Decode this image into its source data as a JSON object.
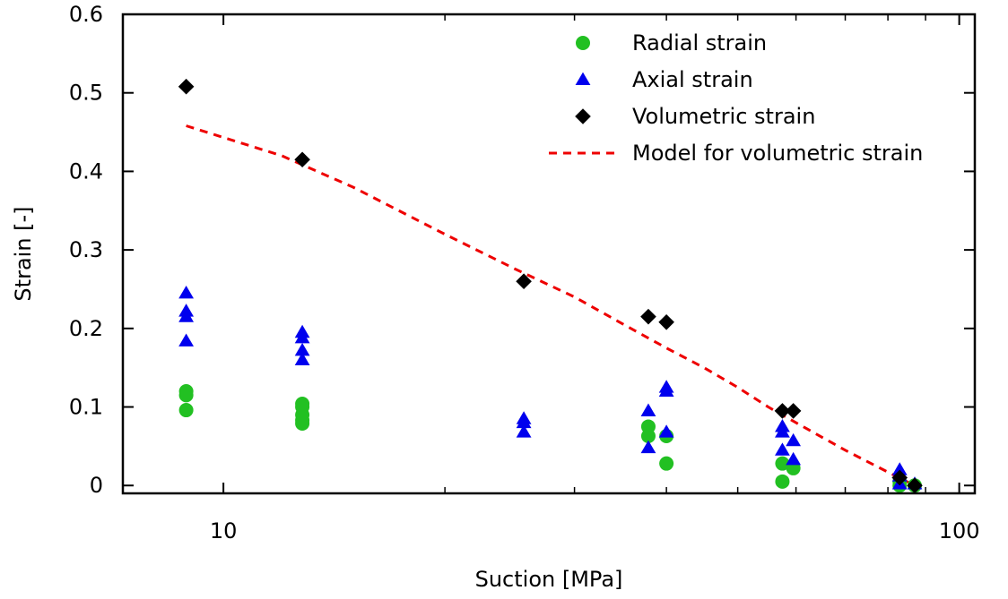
{
  "chart_data": {
    "type": "scatter",
    "xlabel": "Suction [MPa]",
    "ylabel": "Strain [-]",
    "xscale": "log",
    "xlim": [
      7.3,
      105
    ],
    "ylim": [
      -0.01,
      0.6
    ],
    "x_ticks_labeled": [
      {
        "value": 10,
        "label": "10"
      },
      {
        "value": 100,
        "label": "100"
      }
    ],
    "x_minor_ticks": [
      20,
      30,
      40,
      50,
      60,
      70,
      80,
      90
    ],
    "y_ticks": [
      {
        "value": 0,
        "label": "0"
      },
      {
        "value": 0.1,
        "label": "0.1"
      },
      {
        "value": 0.2,
        "label": "0.2"
      },
      {
        "value": 0.3,
        "label": "0.3"
      },
      {
        "value": 0.4,
        "label": "0.4"
      },
      {
        "value": 0.5,
        "label": "0.5"
      },
      {
        "value": 0.6,
        "label": "0.6"
      }
    ],
    "grid": false,
    "legend_position": "top-right",
    "series": [
      {
        "name": "Radial strain",
        "marker": "circle",
        "color": "#22c022",
        "points": [
          [
            8.9,
            0.12
          ],
          [
            8.9,
            0.115
          ],
          [
            8.9,
            0.096
          ],
          [
            12.8,
            0.104
          ],
          [
            12.8,
            0.1
          ],
          [
            12.8,
            0.09
          ],
          [
            12.8,
            0.083
          ],
          [
            12.8,
            0.079
          ],
          [
            37.8,
            0.075
          ],
          [
            37.8,
            0.063
          ],
          [
            40.0,
            0.063
          ],
          [
            40.0,
            0.028
          ],
          [
            57.5,
            0.028
          ],
          [
            57.5,
            0.005
          ],
          [
            59.5,
            0.022
          ],
          [
            83.0,
            0.0
          ],
          [
            83.0,
            0.005
          ],
          [
            87.0,
            0.0
          ]
        ]
      },
      {
        "name": "Axial strain",
        "marker": "triangle",
        "color": "#0000ee",
        "points": [
          [
            8.9,
            0.245
          ],
          [
            8.9,
            0.222
          ],
          [
            8.9,
            0.215
          ],
          [
            8.9,
            0.184
          ],
          [
            12.8,
            0.195
          ],
          [
            12.8,
            0.188
          ],
          [
            12.8,
            0.172
          ],
          [
            12.8,
            0.16
          ],
          [
            25.6,
            0.085
          ],
          [
            25.6,
            0.08
          ],
          [
            25.6,
            0.068
          ],
          [
            37.8,
            0.095
          ],
          [
            37.8,
            0.048
          ],
          [
            40.0,
            0.125
          ],
          [
            40.0,
            0.12
          ],
          [
            40.0,
            0.068
          ],
          [
            57.5,
            0.075
          ],
          [
            57.5,
            0.068
          ],
          [
            57.5,
            0.045
          ],
          [
            59.5,
            0.057
          ],
          [
            59.5,
            0.033
          ],
          [
            83.0,
            0.02
          ],
          [
            83.0,
            0.012
          ],
          [
            83.0,
            0.002
          ],
          [
            87.0,
            0.002
          ]
        ]
      },
      {
        "name": "Volumetric strain",
        "marker": "diamond",
        "color": "#000000",
        "points": [
          [
            8.9,
            0.508
          ],
          [
            12.8,
            0.415
          ],
          [
            25.6,
            0.26
          ],
          [
            37.8,
            0.215
          ],
          [
            40.0,
            0.208
          ],
          [
            57.5,
            0.095
          ],
          [
            59.5,
            0.095
          ],
          [
            83.0,
            0.01
          ],
          [
            87.0,
            0.0
          ]
        ]
      },
      {
        "name": "Model for volumetric strain",
        "marker": "dashed-line",
        "color": "#ee0000",
        "points": [
          [
            8.9,
            0.458
          ],
          [
            12.0,
            0.42
          ],
          [
            15.0,
            0.38
          ],
          [
            20.0,
            0.32
          ],
          [
            25.0,
            0.275
          ],
          [
            30.0,
            0.24
          ],
          [
            35.0,
            0.205
          ],
          [
            40.0,
            0.175
          ],
          [
            45.0,
            0.15
          ],
          [
            50.0,
            0.125
          ],
          [
            55.0,
            0.1
          ],
          [
            60.0,
            0.08
          ],
          [
            70.0,
            0.045
          ],
          [
            80.0,
            0.017
          ],
          [
            87.0,
            0.0
          ]
        ]
      }
    ]
  }
}
